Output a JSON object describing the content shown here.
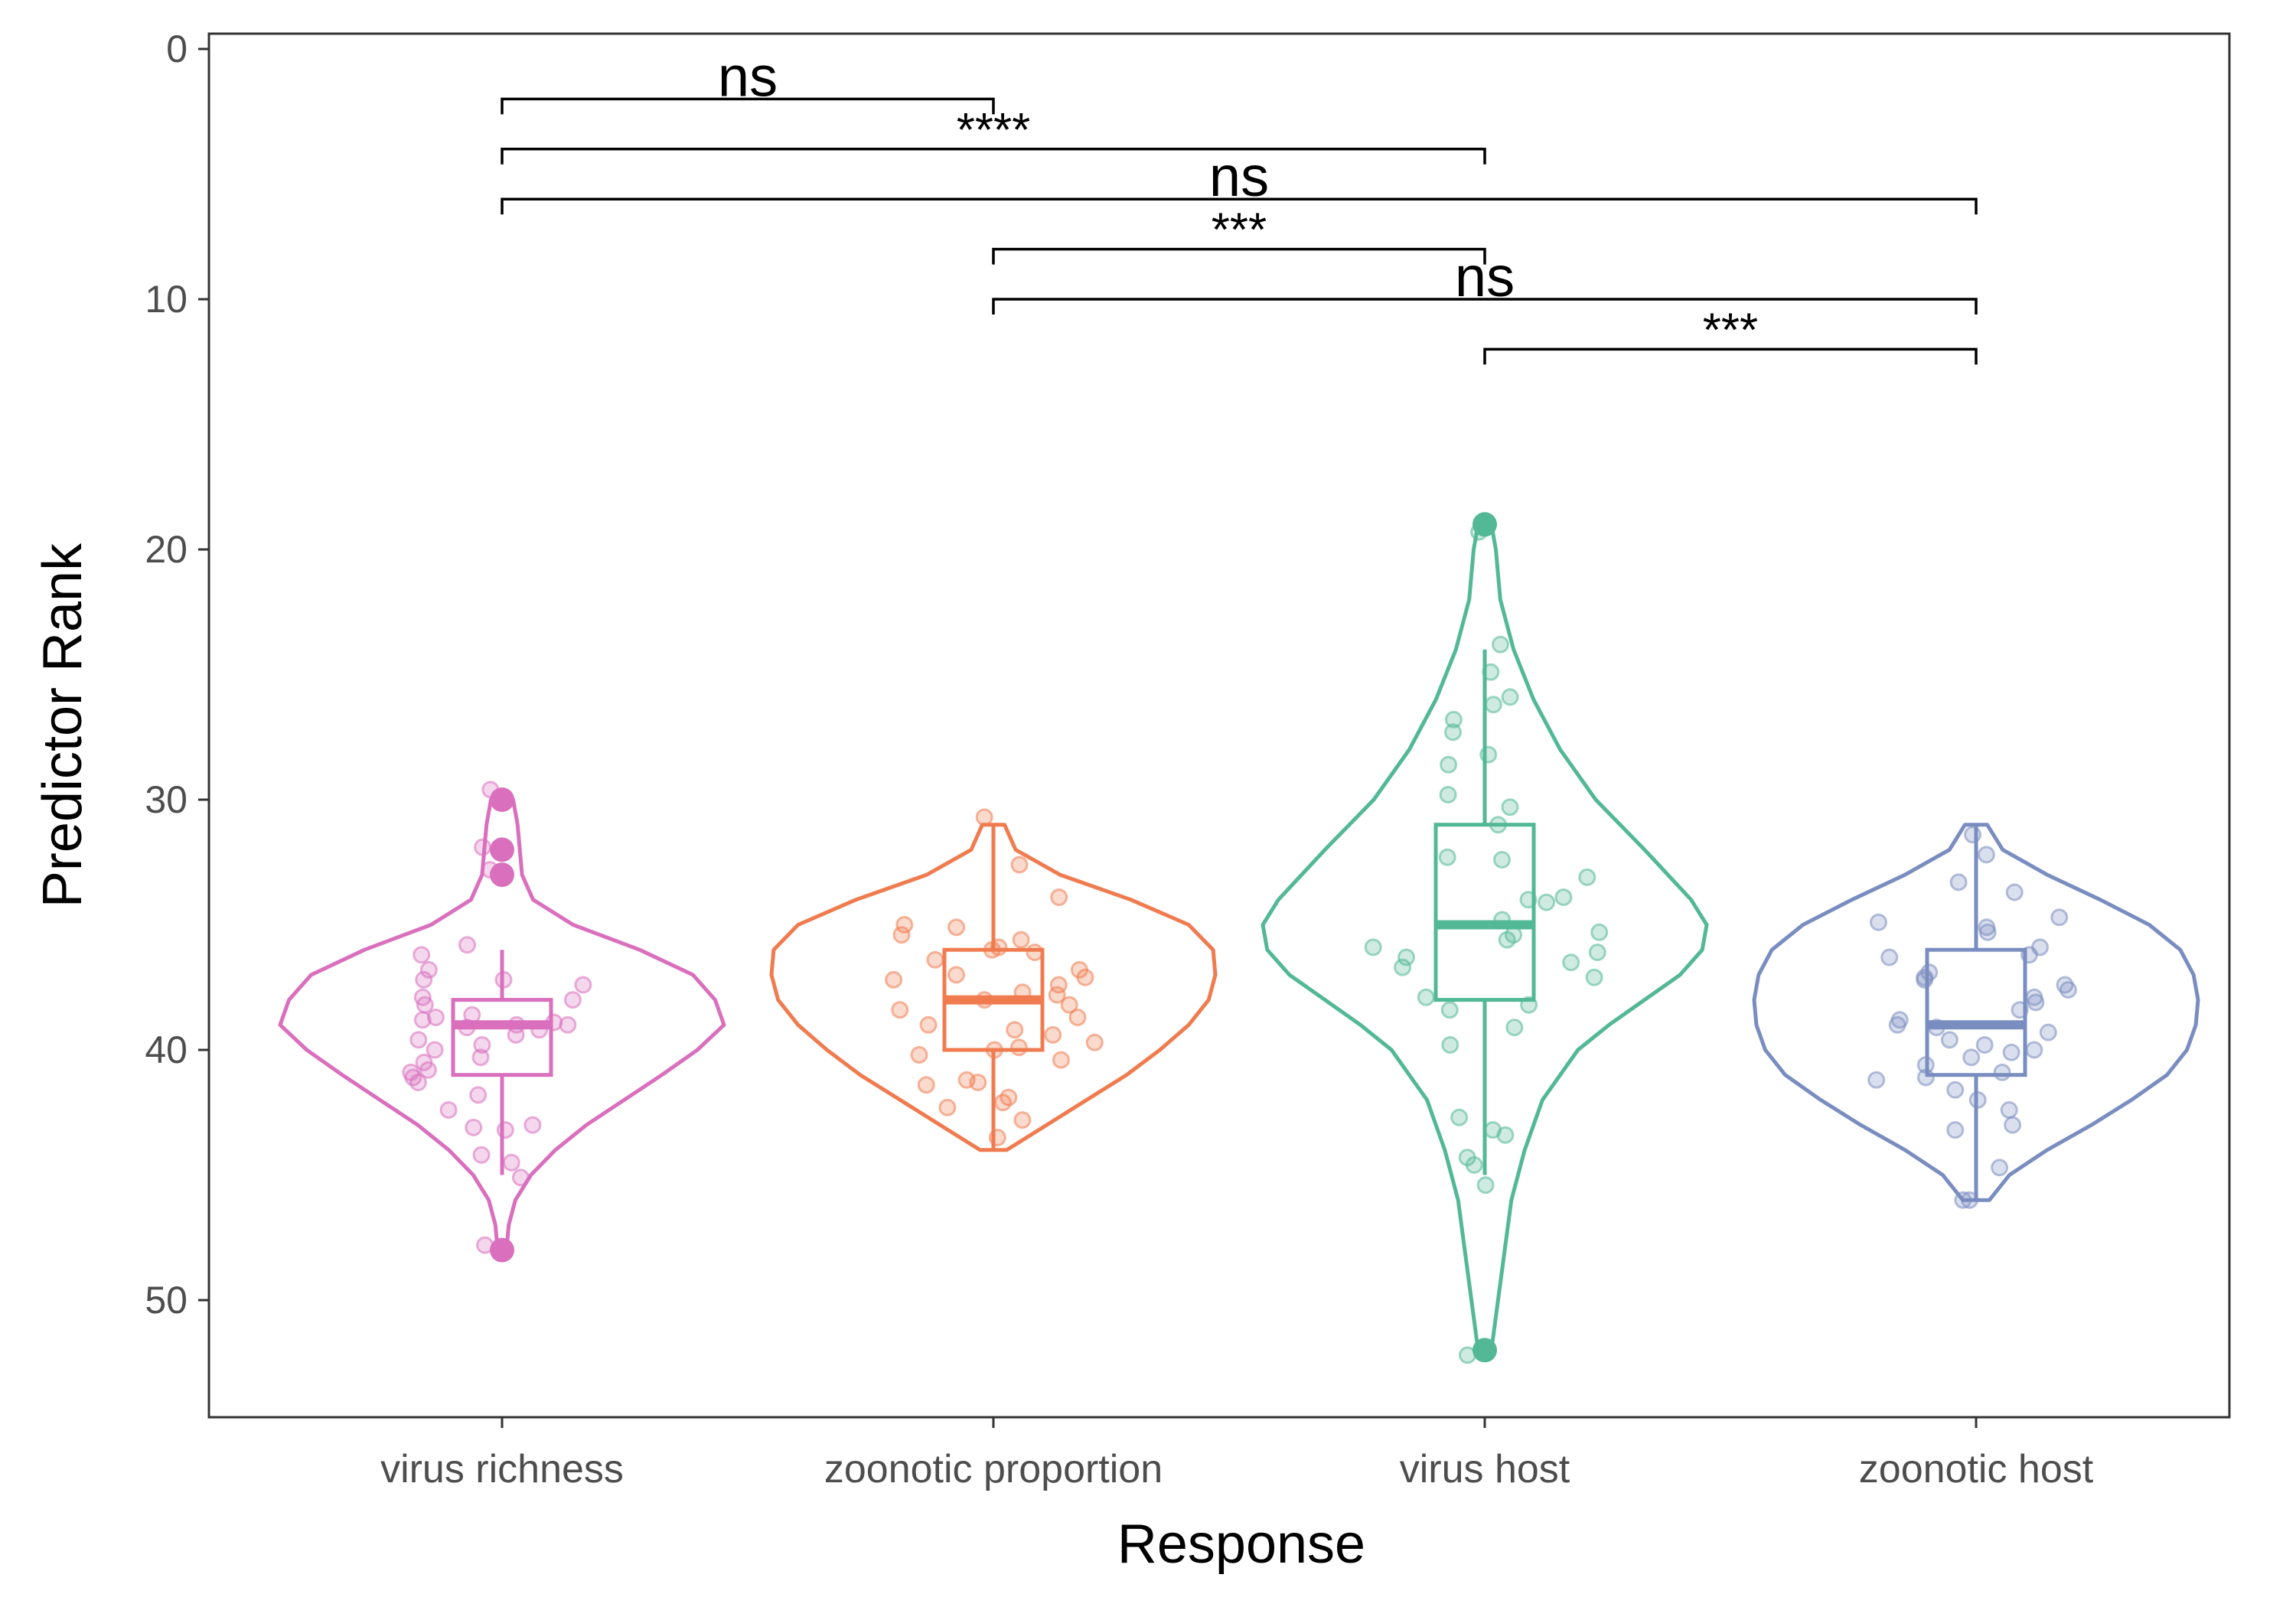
{
  "chart_data": {
    "type": "violin",
    "xlabel": "Response",
    "ylabel": "Predictor Rank",
    "y_reversed": true,
    "ylim": [
      0,
      54.6
    ],
    "yticks": [
      0,
      10,
      20,
      30,
      40,
      50
    ],
    "ytick_labels": [
      "0",
      "10",
      "20",
      "30",
      "40",
      "50"
    ],
    "grid": false,
    "legend": "none",
    "categories": [
      "virus richness",
      "zoonotic proportion",
      "virus host",
      "zoonotic host"
    ],
    "series": [
      {
        "color": "#D96FBD",
        "box": {
          "q1": 38,
          "median": 39,
          "q3": 41,
          "whisker_low": 36,
          "whisker_high": 45
        },
        "outliers": [
          30,
          32,
          33,
          48
        ],
        "violin": [
          [
            30,
            0.05
          ],
          [
            31,
            0.07
          ],
          [
            32,
            0.08
          ],
          [
            33,
            0.09
          ],
          [
            34,
            0.14
          ],
          [
            35,
            0.32
          ],
          [
            36,
            0.62
          ],
          [
            37,
            0.86
          ],
          [
            38,
            0.96
          ],
          [
            39,
            1.0
          ],
          [
            40,
            0.88
          ],
          [
            41,
            0.72
          ],
          [
            42,
            0.55
          ],
          [
            43,
            0.38
          ],
          [
            44,
            0.24
          ],
          [
            45,
            0.13
          ],
          [
            46,
            0.06
          ],
          [
            47,
            0.03
          ],
          [
            48,
            0.02
          ]
        ],
        "points": [
          29.6,
          31.9,
          32.8,
          35.8,
          36.2,
          36.8,
          37.2,
          37.2,
          37.4,
          37.9,
          38.0,
          38.2,
          38.6,
          38.7,
          38.8,
          38.9,
          39.0,
          39.0,
          39.1,
          39.2,
          39.4,
          39.6,
          39.8,
          40.0,
          40.3,
          40.5,
          40.8,
          40.9,
          41.1,
          41.3,
          41.8,
          42.4,
          43.0,
          43.1,
          43.2,
          44.2,
          44.5,
          45.1,
          47.8
        ]
      },
      {
        "color": "#F07B4F",
        "box": {
          "q1": 36,
          "median": 38,
          "q3": 40,
          "whisker_low": 31,
          "whisker_high": 44
        },
        "outliers": [],
        "violin": [
          [
            31,
            0.05
          ],
          [
            32,
            0.1
          ],
          [
            33,
            0.3
          ],
          [
            34,
            0.62
          ],
          [
            35,
            0.88
          ],
          [
            36,
            0.99
          ],
          [
            37,
            1.0
          ],
          [
            38,
            0.97
          ],
          [
            39,
            0.88
          ],
          [
            40,
            0.75
          ],
          [
            41,
            0.6
          ],
          [
            42,
            0.42
          ],
          [
            43,
            0.24
          ],
          [
            44,
            0.06
          ]
        ],
        "points": [
          30.7,
          32.6,
          33.9,
          35.0,
          35.1,
          35.4,
          35.6,
          35.9,
          36.0,
          36.1,
          36.4,
          36.8,
          37.0,
          37.1,
          37.2,
          37.4,
          37.7,
          37.8,
          38.0,
          38.2,
          38.4,
          38.7,
          39.0,
          39.2,
          39.4,
          39.7,
          39.9,
          40.0,
          40.2,
          40.4,
          41.2,
          41.3,
          41.4,
          41.9,
          42.1,
          42.3,
          42.8,
          43.5
        ]
      },
      {
        "color": "#52B895",
        "box": {
          "q1": 31,
          "median": 35,
          "q3": 38,
          "whisker_low": 24,
          "whisker_high": 45
        },
        "outliers": [
          19,
          52
        ],
        "violin": [
          [
            19,
            0.03
          ],
          [
            20,
            0.05
          ],
          [
            22,
            0.07
          ],
          [
            24,
            0.13
          ],
          [
            26,
            0.22
          ],
          [
            28,
            0.34
          ],
          [
            30,
            0.5
          ],
          [
            32,
            0.72
          ],
          [
            34,
            0.93
          ],
          [
            35,
            1.0
          ],
          [
            36,
            0.98
          ],
          [
            37,
            0.88
          ],
          [
            38,
            0.72
          ],
          [
            39,
            0.56
          ],
          [
            40,
            0.42
          ],
          [
            42,
            0.26
          ],
          [
            44,
            0.18
          ],
          [
            46,
            0.12
          ],
          [
            48,
            0.09
          ],
          [
            50,
            0.06
          ],
          [
            52,
            0.03
          ]
        ],
        "points": [
          19.3,
          23.8,
          24.9,
          25.9,
          26.2,
          26.8,
          27.3,
          28.2,
          28.6,
          29.8,
          30.3,
          31.0,
          32.3,
          32.4,
          33.1,
          33.9,
          34.0,
          34.1,
          34.8,
          35.3,
          35.4,
          35.6,
          35.9,
          36.1,
          36.3,
          36.5,
          36.7,
          37.1,
          37.9,
          38.2,
          38.4,
          39.1,
          39.8,
          42.7,
          43.2,
          43.4,
          44.3,
          44.6,
          45.4,
          52.2
        ]
      },
      {
        "color": "#7A8DC0",
        "box": {
          "q1": 36,
          "median": 39,
          "q3": 41,
          "whisker_low": 31,
          "whisker_high": 46
        },
        "outliers": [],
        "violin": [
          [
            31,
            0.05
          ],
          [
            32,
            0.12
          ],
          [
            33,
            0.32
          ],
          [
            34,
            0.56
          ],
          [
            35,
            0.78
          ],
          [
            36,
            0.92
          ],
          [
            37,
            0.98
          ],
          [
            38,
            1.0
          ],
          [
            39,
            0.99
          ],
          [
            40,
            0.95
          ],
          [
            41,
            0.86
          ],
          [
            42,
            0.7
          ],
          [
            43,
            0.52
          ],
          [
            44,
            0.32
          ],
          [
            45,
            0.15
          ],
          [
            46,
            0.06
          ]
        ],
        "points": [
          31.4,
          32.2,
          33.3,
          33.7,
          34.7,
          34.9,
          35.1,
          35.3,
          35.9,
          36.2,
          36.3,
          36.9,
          37.1,
          37.2,
          37.4,
          37.6,
          37.9,
          38.1,
          38.4,
          38.8,
          39.0,
          39.1,
          39.3,
          39.6,
          39.8,
          40.0,
          40.1,
          40.3,
          40.6,
          40.9,
          41.1,
          41.2,
          41.6,
          42.0,
          42.4,
          43.0,
          43.2,
          44.7,
          46.0,
          46.0
        ]
      }
    ],
    "comparisons": [
      {
        "from": 0,
        "to": 1,
        "y": 2,
        "label": "ns"
      },
      {
        "from": 0,
        "to": 2,
        "y": 4,
        "label": "****"
      },
      {
        "from": 0,
        "to": 3,
        "y": 6,
        "label": "ns"
      },
      {
        "from": 1,
        "to": 2,
        "y": 8,
        "label": "***"
      },
      {
        "from": 1,
        "to": 3,
        "y": 10,
        "label": "ns"
      },
      {
        "from": 2,
        "to": 3,
        "y": 12,
        "label": "***"
      }
    ]
  }
}
